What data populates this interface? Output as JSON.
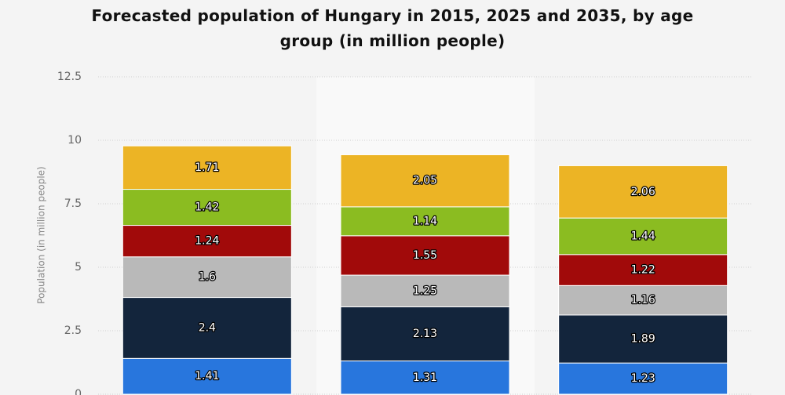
{
  "chart_data": {
    "type": "stacked-bar",
    "title": "Forecasted population of Hungary in 2015, 2025 and 2035, by age group (in million people)",
    "y_label": "Population (in million people)",
    "categories": [
      null,
      null,
      null
    ],
    "series": [
      {
        "color": "#2876dd",
        "values": [
          1.41,
          1.31,
          1.23
        ]
      },
      {
        "color": "#13253c",
        "values": [
          2.4,
          2.13,
          1.89
        ]
      },
      {
        "color": "#b9b9b9",
        "values": [
          1.6,
          1.25,
          1.16
        ]
      },
      {
        "color": "#a10a0a",
        "values": [
          1.24,
          1.55,
          1.22
        ]
      },
      {
        "color": "#8bbc21",
        "values": [
          1.42,
          1.14,
          1.44
        ]
      },
      {
        "color": "#ecb425",
        "values": [
          1.71,
          2.05,
          2.06
        ]
      }
    ],
    "ylim": [
      0,
      12.5
    ],
    "yticks": [
      0,
      2.5,
      5,
      7.5,
      10,
      12.5
    ],
    "grid": true
  }
}
